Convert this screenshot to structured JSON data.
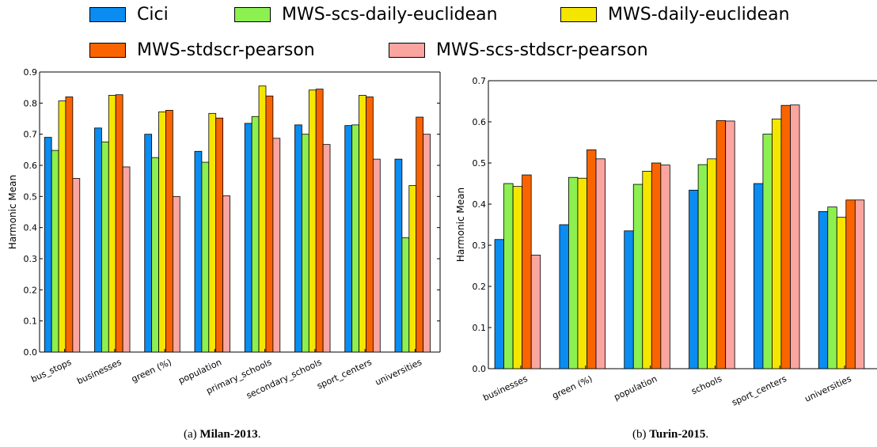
{
  "legend": {
    "items": [
      {
        "name": "Cici",
        "color": "#0a8cf0"
      },
      {
        "name": "MWS-scs-daily-euclidean",
        "color": "#8cf050"
      },
      {
        "name": "MWS-daily-euclidean",
        "color": "#f5e600"
      },
      {
        "name": "MWS-stdscr-pearson",
        "color": "#fa6400"
      },
      {
        "name": "MWS-scs-stdscr-pearson",
        "color": "#faa5a0"
      }
    ]
  },
  "captions": {
    "a": {
      "prefix": "(a) ",
      "bold": "Milan-2013",
      "suffix": "."
    },
    "b": {
      "prefix": "(b) ",
      "bold": "Turin-2015",
      "suffix": "."
    }
  },
  "chart_data": [
    {
      "type": "bar",
      "ylabel": "Harmonic Mean",
      "ylim": [
        0,
        0.9
      ],
      "yticks": [
        "0.0",
        "0.1",
        "0.2",
        "0.3",
        "0.4",
        "0.5",
        "0.6",
        "0.7",
        "0.8",
        "0.9"
      ],
      "categories": [
        "bus_stops",
        "businesses",
        "green (%)",
        "population",
        "primary_schools",
        "secondary_schools",
        "sport_centers",
        "universities"
      ],
      "series": [
        {
          "name": "Cici",
          "values": [
            0.69,
            0.72,
            0.7,
            0.645,
            0.735,
            0.73,
            0.728,
            0.62
          ]
        },
        {
          "name": "MWS-scs-daily-euclidean",
          "values": [
            0.648,
            0.675,
            0.625,
            0.61,
            0.757,
            0.7,
            0.73,
            0.367
          ]
        },
        {
          "name": "MWS-daily-euclidean",
          "values": [
            0.807,
            0.825,
            0.772,
            0.767,
            0.855,
            0.842,
            0.825,
            0.535
          ]
        },
        {
          "name": "MWS-stdscr-pearson",
          "values": [
            0.82,
            0.827,
            0.777,
            0.752,
            0.823,
            0.845,
            0.82,
            0.755
          ]
        },
        {
          "name": "MWS-scs-stdscr-pearson",
          "values": [
            0.558,
            0.595,
            0.5,
            0.502,
            0.687,
            0.667,
            0.62,
            0.7
          ]
        }
      ]
    },
    {
      "type": "bar",
      "ylabel": "Harmonic Mean",
      "ylim": [
        0,
        0.7
      ],
      "yticks": [
        "0.0",
        "0.1",
        "0.2",
        "0.3",
        "0.4",
        "0.5",
        "0.6",
        "0.7"
      ],
      "categories": [
        "businesses",
        "green (%)",
        "population",
        "schools",
        "sport_centers",
        "universities"
      ],
      "series": [
        {
          "name": "Cici",
          "values": [
            0.314,
            0.35,
            0.335,
            0.434,
            0.45,
            0.382
          ]
        },
        {
          "name": "MWS-scs-daily-euclidean",
          "values": [
            0.45,
            0.465,
            0.448,
            0.496,
            0.57,
            0.393
          ]
        },
        {
          "name": "MWS-daily-euclidean",
          "values": [
            0.443,
            0.463,
            0.48,
            0.51,
            0.607,
            0.368
          ]
        },
        {
          "name": "MWS-stdscr-pearson",
          "values": [
            0.471,
            0.532,
            0.5,
            0.603,
            0.64,
            0.41
          ]
        },
        {
          "name": "MWS-scs-stdscr-pearson",
          "values": [
            0.276,
            0.51,
            0.495,
            0.602,
            0.641,
            0.41
          ]
        }
      ]
    }
  ]
}
